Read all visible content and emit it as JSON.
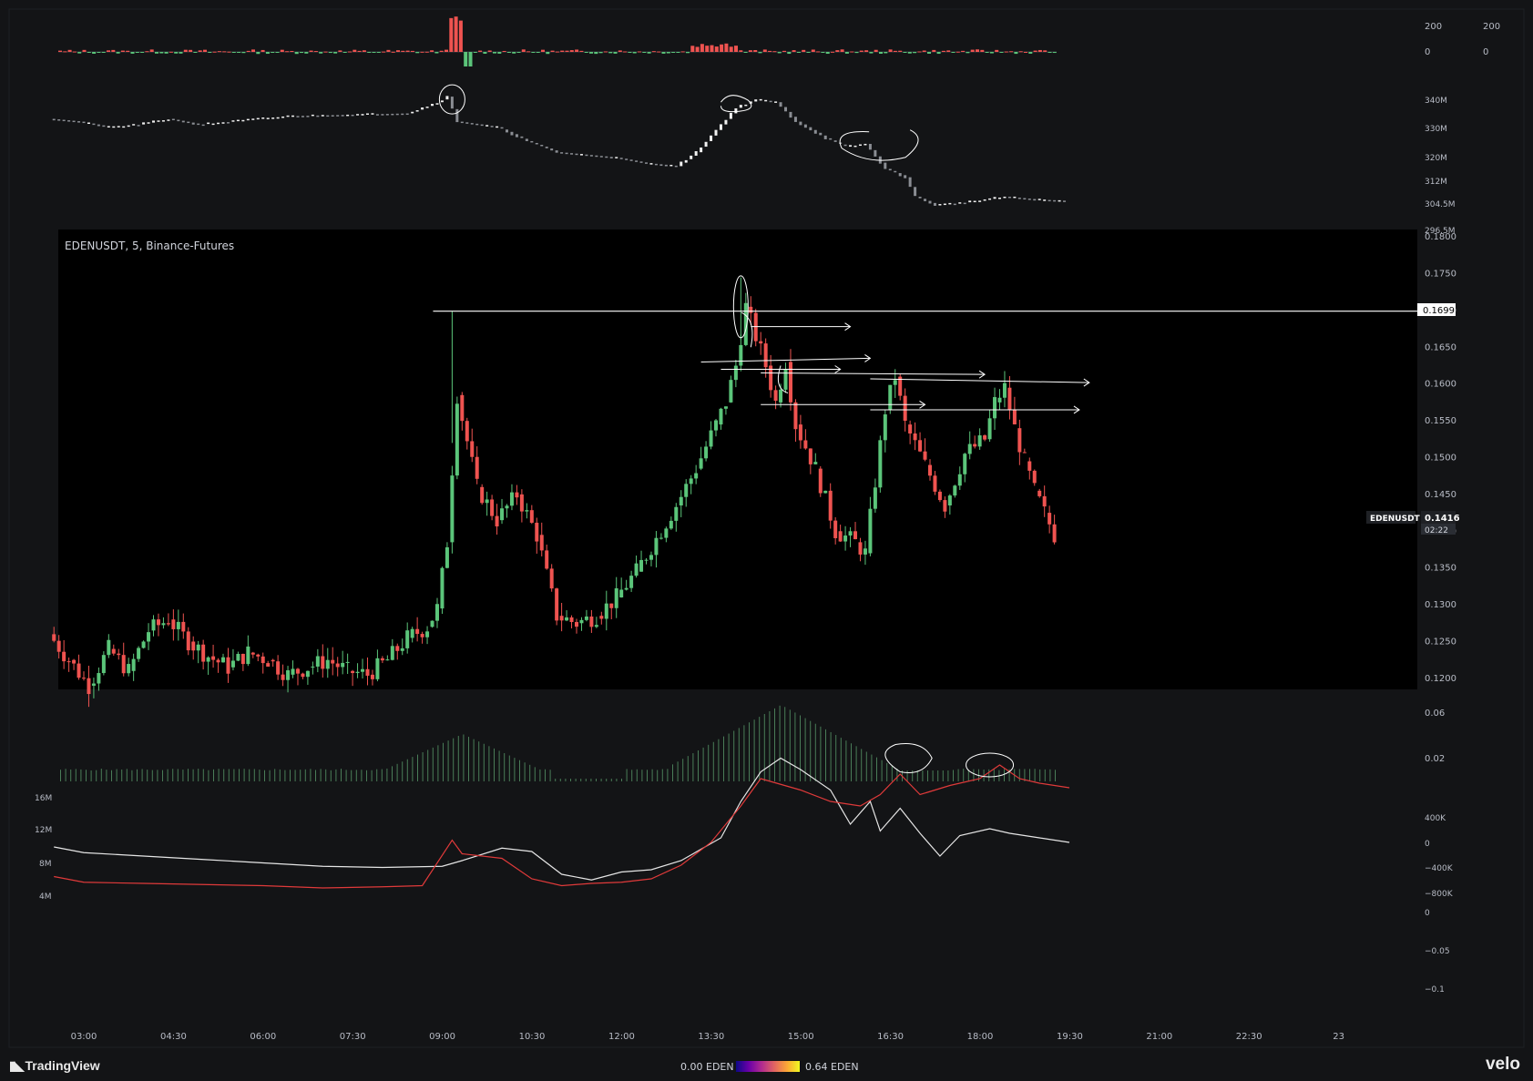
{
  "symbol_label": "EDENUSDT, 5, Binance-Futures",
  "price_axis": [
    "0.1800",
    "0.1750",
    "0.1700",
    "0.1650",
    "0.1600",
    "0.1550",
    "0.1500",
    "0.1450",
    "0.1400",
    "0.1350",
    "0.1300",
    "0.1250",
    "0.1200"
  ],
  "price_tag": {
    "name": "EDENUSDT",
    "value": "0.1416",
    "countdown": "02:22"
  },
  "level_tag": "0.1699",
  "time_axis": [
    "03:00",
    "04:30",
    "06:00",
    "07:30",
    "09:00",
    "10:30",
    "12:00",
    "13:30",
    "15:00",
    "16:30",
    "18:00",
    "19:30",
    "21:00",
    "22:30",
    "23"
  ],
  "top_panel_axis_left": [
    "200",
    "0"
  ],
  "top_panel_axis_right": [
    "200",
    "0"
  ],
  "oi_axis": [
    "340M",
    "330M",
    "320M",
    "312M",
    "304.5M",
    "296.5M"
  ],
  "funding_axis": [
    "0.06",
    "0.02"
  ],
  "cvd_left_axis": [
    "16M",
    "12M",
    "8M",
    "4M"
  ],
  "cvd_right_axis": [
    "400K",
    "0",
    "−400K",
    "−800K",
    "0",
    "−0.05",
    "−0.1"
  ],
  "footer": {
    "brand": "TradingView",
    "legend_low": "0.00 EDEN",
    "legend_high": "0.64 EDEN",
    "velo": "velo"
  },
  "colors": {
    "up": "#5bc57a",
    "down": "#ef5350",
    "white": "#e6e6e6",
    "cvd_red": "#e03a3a",
    "bg": "#131416",
    "chart_bg": "#000000"
  },
  "chart_data": [
    {
      "type": "candlestick",
      "title": "EDENUSDT, 5, Binance-Futures",
      "ylim": [
        0.1185,
        0.181
      ],
      "x_start": "02:30",
      "x_end": "19:35",
      "candles": [
        [
          "02:30",
          0.126,
          0.1225
        ],
        [
          "02:50",
          0.1225,
          0.119
        ],
        [
          "03:10",
          0.119,
          0.124
        ],
        [
          "03:30",
          0.124,
          0.121
        ],
        [
          "03:50",
          0.121,
          0.1265
        ],
        [
          "04:10",
          0.1265,
          0.128
        ],
        [
          "04:30",
          0.128,
          0.125
        ],
        [
          "04:50",
          0.125,
          0.123
        ],
        [
          "05:10",
          0.123,
          0.1215
        ],
        [
          "05:30",
          0.1215,
          0.1235
        ],
        [
          "05:50",
          0.1235,
          0.1225
        ],
        [
          "06:10",
          0.1225,
          0.1205
        ],
        [
          "06:30",
          0.1205,
          0.1215
        ],
        [
          "06:50",
          0.1215,
          0.1225
        ],
        [
          "07:10",
          0.1225,
          0.121
        ],
        [
          "07:30",
          0.121,
          0.1205
        ],
        [
          "07:50",
          0.1205,
          0.1225
        ],
        [
          "08:10",
          0.1225,
          0.1255
        ],
        [
          "08:30",
          0.1255,
          0.127
        ],
        [
          "08:50",
          0.127,
          0.1295
        ],
        [
          "09:00",
          0.1295,
          0.1385
        ],
        [
          "09:10",
          0.1385,
          0.1585
        ],
        [
          "09:20",
          0.1585,
          0.146
        ],
        [
          "09:40",
          0.146,
          0.1415
        ],
        [
          "10:00",
          0.1415,
          0.145
        ],
        [
          "10:20",
          0.145,
          0.1395
        ],
        [
          "10:40",
          0.1395,
          0.1285
        ],
        [
          "11:00",
          0.1285,
          0.1275
        ],
        [
          "11:20",
          0.1275,
          0.1285
        ],
        [
          "11:40",
          0.1285,
          0.131
        ],
        [
          "12:00",
          0.131,
          0.1345
        ],
        [
          "12:20",
          0.1345,
          0.139
        ],
        [
          "12:40",
          0.139,
          0.1435
        ],
        [
          "13:00",
          0.1435,
          0.1485
        ],
        [
          "13:20",
          0.1485,
          0.1545
        ],
        [
          "13:40",
          0.1545,
          0.1575
        ],
        [
          "13:50",
          0.1575,
          0.1625
        ],
        [
          "14:00",
          0.1625,
          0.1705
        ],
        [
          "14:10",
          0.1705,
          0.1625
        ],
        [
          "14:30",
          0.1625,
          0.1575
        ],
        [
          "14:40",
          0.1575,
          0.163
        ],
        [
          "14:50",
          0.163,
          0.1545
        ],
        [
          "15:00",
          0.1545,
          0.1485
        ],
        [
          "15:20",
          0.1485,
          0.14
        ],
        [
          "15:40",
          0.14,
          0.1385
        ],
        [
          "16:00",
          0.1385,
          0.137
        ],
        [
          "16:10",
          0.137,
          0.1565
        ],
        [
          "16:30",
          0.1565,
          0.161
        ],
        [
          "16:40",
          0.161,
          0.1545
        ],
        [
          "16:50",
          0.1545,
          0.149
        ],
        [
          "17:10",
          0.149,
          0.1435
        ],
        [
          "17:30",
          0.1435,
          0.1505
        ],
        [
          "17:50",
          0.1505,
          0.1525
        ],
        [
          "18:10",
          0.1525,
          0.1575
        ],
        [
          "18:20",
          0.1575,
          0.1595
        ],
        [
          "18:30",
          0.1595,
          0.154
        ],
        [
          "18:40",
          0.154,
          0.1495
        ],
        [
          "18:50",
          0.1495,
          0.1455
        ],
        [
          "19:00",
          0.1455,
          0.1425
        ],
        [
          "19:10",
          0.1425,
          0.1395
        ],
        [
          "19:20",
          0.1395,
          0.1416
        ]
      ],
      "horizontal_level": 0.1699
    },
    {
      "type": "line",
      "title": "",
      "ylim": [
        296.5,
        344
      ],
      "x_start": "02:30",
      "x_end": "19:35",
      "series": [
        {
          "points": [
            [
              "02:30",
              334
            ],
            [
              "03:00",
              333
            ],
            [
              "03:30",
              331
            ],
            [
              "04:00",
              332
            ],
            [
              "04:30",
              334
            ],
            [
              "05:00",
              332
            ],
            [
              "05:30",
              333
            ],
            [
              "06:00",
              334
            ],
            [
              "06:30",
              335
            ],
            [
              "07:30",
              335.5
            ],
            [
              "08:30",
              336
            ],
            [
              "09:00",
              340
            ],
            [
              "09:10",
              342
            ],
            [
              "09:20",
              333
            ],
            [
              "10:00",
              331
            ],
            [
              "10:30",
              326
            ],
            [
              "11:00",
              322
            ],
            [
              "11:30",
              321
            ],
            [
              "12:00",
              320
            ],
            [
              "12:30",
              318
            ],
            [
              "13:00",
              317
            ],
            [
              "13:20",
              322
            ],
            [
              "13:40",
              330
            ],
            [
              "14:00",
              338
            ],
            [
              "14:20",
              341
            ],
            [
              "14:40",
              340
            ],
            [
              "15:00",
              333
            ],
            [
              "15:30",
              327
            ],
            [
              "15:50",
              324
            ],
            [
              "16:10",
              325
            ],
            [
              "16:30",
              316
            ],
            [
              "16:50",
              313
            ],
            [
              "17:00",
              306
            ],
            [
              "17:20",
              303
            ],
            [
              "17:50",
              304
            ],
            [
              "18:30",
              306
            ],
            [
              "19:00",
              305
            ],
            [
              "19:30",
              304.5
            ]
          ]
        }
      ]
    },
    {
      "type": "line",
      "title": "",
      "x_start": "02:30",
      "x_end": "19:35",
      "series": [
        {
          "points": [
            [
              "02:30",
              0
            ],
            [
              "03:00",
              -25
            ],
            [
              "04:00",
              -40
            ],
            [
              "05:00",
              -55
            ],
            [
              "06:00",
              -70
            ],
            [
              "07:00",
              -85
            ],
            [
              "08:00",
              -90
            ],
            [
              "09:00",
              -85
            ],
            [
              "09:20",
              -60
            ],
            [
              "10:00",
              -5
            ],
            [
              "10:30",
              -20
            ],
            [
              "11:00",
              -120
            ],
            [
              "11:30",
              -145
            ],
            [
              "12:00",
              -110
            ],
            [
              "12:30",
              -100
            ],
            [
              "13:00",
              -60
            ],
            [
              "13:40",
              40
            ],
            [
              "14:00",
              200
            ],
            [
              "14:20",
              330
            ],
            [
              "14:40",
              390
            ],
            [
              "15:00",
              340
            ],
            [
              "15:30",
              250
            ],
            [
              "15:50",
              100
            ],
            [
              "16:10",
              200
            ],
            [
              "16:20",
              70
            ],
            [
              "16:40",
              170
            ],
            [
              "17:00",
              60
            ],
            [
              "17:20",
              -40
            ],
            [
              "17:40",
              50
            ],
            [
              "18:10",
              80
            ],
            [
              "18:30",
              60
            ],
            [
              "19:00",
              40
            ],
            [
              "19:30",
              20
            ]
          ]
        },
        {
          "points": [
            [
              "02:30",
              -130
            ],
            [
              "03:00",
              -155
            ],
            [
              "04:00",
              -160
            ],
            [
              "05:00",
              -165
            ],
            [
              "06:00",
              -170
            ],
            [
              "07:00",
              -180
            ],
            [
              "08:00",
              -175
            ],
            [
              "08:40",
              -170
            ],
            [
              "09:10",
              30
            ],
            [
              "09:20",
              -30
            ],
            [
              "10:00",
              -50
            ],
            [
              "10:30",
              -140
            ],
            [
              "11:00",
              -170
            ],
            [
              "11:30",
              -160
            ],
            [
              "12:00",
              -155
            ],
            [
              "12:30",
              -140
            ],
            [
              "13:00",
              -80
            ],
            [
              "13:30",
              20
            ],
            [
              "14:00",
              180
            ],
            [
              "14:20",
              300
            ],
            [
              "15:00",
              250
            ],
            [
              "15:30",
              200
            ],
            [
              "16:00",
              180
            ],
            [
              "16:20",
              230
            ],
            [
              "16:40",
              320
            ],
            [
              "17:00",
              230
            ],
            [
              "17:30",
              270
            ],
            [
              "18:00",
              300
            ],
            [
              "18:20",
              360
            ],
            [
              "18:40",
              300
            ],
            [
              "19:00",
              280
            ],
            [
              "19:30",
              260
            ]
          ]
        }
      ]
    }
  ]
}
